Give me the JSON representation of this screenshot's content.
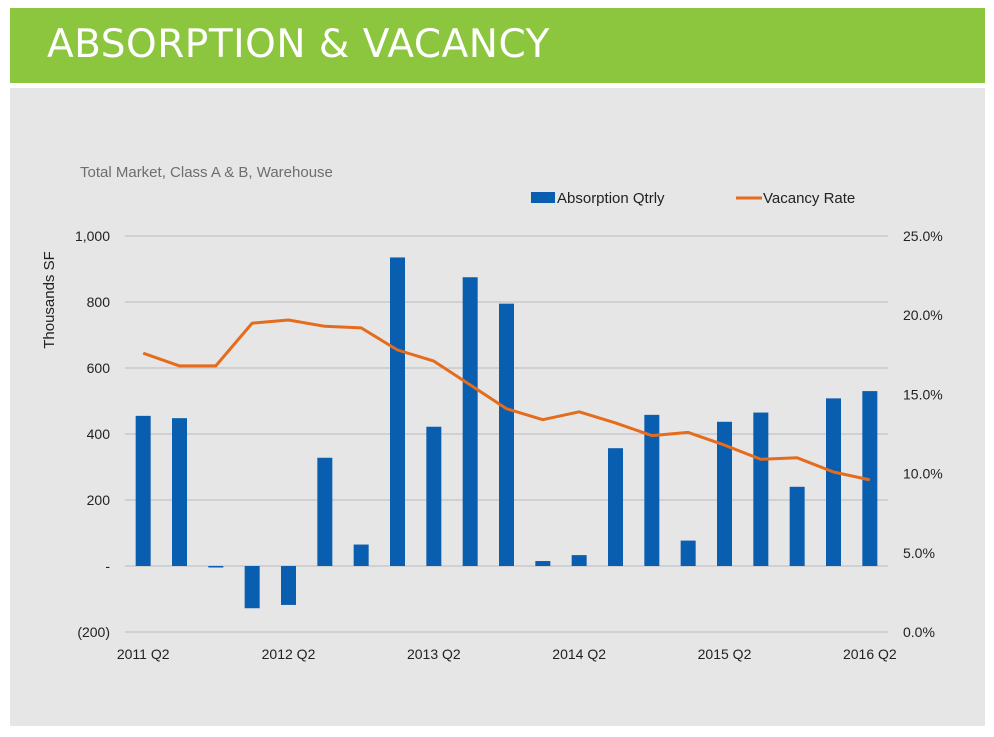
{
  "header": {
    "title": "ABSORPTION & VACANCY"
  },
  "colors": {
    "banner": "#8cc63f",
    "panel": "#e6e6e7",
    "bar": "#0a5eb0",
    "line": "#e46c1c"
  },
  "chart_data": {
    "type": "bar+line",
    "subtitle": "Total Market, Class A & B, Warehouse",
    "ylabel": "Thousands SF",
    "y_left_ticks": [
      "1,000",
      "800",
      "600",
      "400",
      "200",
      "-",
      "(200)"
    ],
    "y_right_ticks": [
      "25.0%",
      "20.0%",
      "15.0%",
      "10.0%",
      "5.0%",
      "0.0%"
    ],
    "x_tick_labels": [
      "2011 Q2",
      "2012 Q2",
      "2013 Q2",
      "2014 Q2",
      "2015 Q2",
      "2016 Q2"
    ],
    "ylim_left": [
      -200,
      1000
    ],
    "ylim_right": [
      0,
      25
    ],
    "grid": true,
    "legend_position": "top-right",
    "categories": [
      "2011 Q2",
      "2011 Q3",
      "2011 Q4",
      "2012 Q1",
      "2012 Q2",
      "2012 Q3",
      "2012 Q4",
      "2013 Q1",
      "2013 Q2",
      "2013 Q3",
      "2013 Q4",
      "2014 Q1",
      "2014 Q2",
      "2014 Q3",
      "2014 Q4",
      "2015 Q1",
      "2015 Q2",
      "2015 Q3",
      "2015 Q4",
      "2016 Q1",
      "2016 Q2"
    ],
    "series": [
      {
        "name": "Absorption Qtrly",
        "type": "bar",
        "axis": "left",
        "values": [
          455,
          448,
          -3,
          -128,
          -118,
          328,
          65,
          935,
          422,
          875,
          795,
          15,
          33,
          357,
          458,
          77,
          437,
          465,
          240,
          508,
          530
        ]
      },
      {
        "name": "Vacancy Rate",
        "type": "line",
        "axis": "right",
        "values": [
          17.6,
          16.8,
          16.8,
          19.5,
          19.7,
          19.3,
          19.2,
          17.8,
          17.1,
          15.6,
          14.1,
          13.4,
          13.9,
          13.2,
          12.4,
          12.6,
          11.8,
          10.9,
          11.0,
          10.1,
          9.6
        ]
      }
    ]
  }
}
